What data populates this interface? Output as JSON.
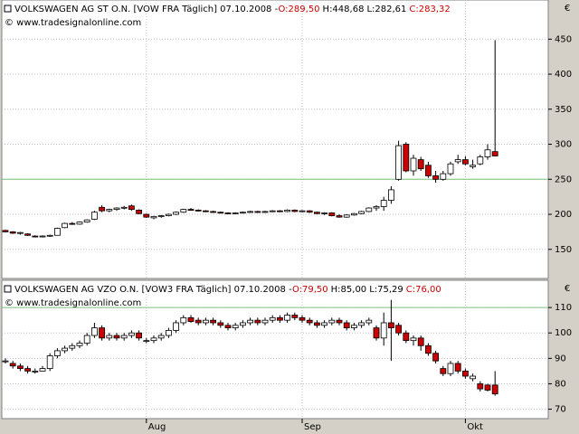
{
  "chart_data": [
    {
      "type": "candlestick",
      "title": "VOLKSWAGEN AG ST O.N. [VOW FRA  Täglich] 07.10.2008 -",
      "ohlc_labels": [
        "O:289,50",
        "H:448,68",
        "L:282,61",
        "C:283,32"
      ],
      "ohlc_label_colors": [
        "#cc0000",
        "#000000",
        "#000000",
        "#cc0000"
      ],
      "source": "© www.tradesignalonline.com",
      "unit": "€",
      "open": [
        177,
        175,
        173,
        172,
        169,
        168,
        169,
        170,
        181,
        187,
        186,
        189,
        193,
        210,
        205,
        207,
        209,
        212,
        206,
        200,
        195,
        197,
        198,
        200,
        203,
        207,
        206,
        205,
        204,
        203,
        202,
        201,
        202,
        203,
        204,
        203,
        204,
        205,
        204,
        206,
        204,
        205,
        203,
        201,
        202,
        198,
        196,
        199,
        201,
        204,
        209,
        211,
        220,
        250,
        300,
        262,
        278,
        270,
        255,
        250,
        258,
        275,
        278,
        268,
        272,
        282,
        289.5
      ],
      "high": [
        178,
        176,
        175,
        173,
        170,
        170,
        171,
        181,
        188,
        189,
        190,
        193,
        205,
        213,
        208,
        210,
        212,
        214,
        207,
        201,
        198,
        199,
        201,
        204,
        208,
        209,
        207,
        206,
        205,
        204,
        203,
        203,
        204,
        205,
        205,
        205,
        206,
        206,
        207,
        207,
        206,
        206,
        204,
        203,
        203,
        200,
        200,
        202,
        205,
        210,
        213,
        225,
        240,
        305,
        303,
        285,
        282,
        275,
        262,
        262,
        275,
        285,
        283,
        278,
        285,
        300,
        448.68
      ],
      "low": [
        174,
        172,
        171,
        169,
        167,
        167,
        168,
        170,
        180,
        185,
        185,
        188,
        192,
        203,
        203,
        205,
        207,
        205,
        200,
        195,
        193,
        195,
        197,
        199,
        202,
        205,
        204,
        203,
        202,
        201,
        200,
        200,
        201,
        202,
        202,
        202,
        203,
        203,
        203,
        203,
        203,
        202,
        200,
        199,
        197,
        195,
        195,
        198,
        200,
        203,
        205,
        205,
        215,
        248,
        260,
        255,
        262,
        252,
        245,
        248,
        255,
        272,
        270,
        265,
        270,
        278,
        282.61
      ],
      "close": [
        175,
        173,
        174,
        170,
        168,
        169,
        170,
        180,
        187,
        186,
        189,
        192,
        203,
        205,
        207,
        209,
        210,
        207,
        201,
        196,
        197,
        198,
        200,
        203,
        207,
        206,
        205,
        204,
        203,
        202,
        201,
        202,
        203,
        204,
        203,
        204,
        205,
        204,
        206,
        204,
        205,
        203,
        201,
        202,
        198,
        196,
        199,
        201,
        204,
        209,
        211,
        220,
        235,
        298,
        262,
        280,
        265,
        255,
        250,
        258,
        272,
        278,
        272,
        270,
        282,
        292,
        283.32
      ],
      "up_color": "#ffffff",
      "down_color": "#cc0000",
      "ylim": [
        111,
        502
      ],
      "yticks": [
        150,
        200,
        250,
        300,
        350,
        400,
        450
      ],
      "grid": true,
      "reference_line": {
        "value": 250,
        "color": "#80c080"
      }
    },
    {
      "type": "candlestick",
      "title": "VOLKSWAGEN AG VZO O.N. [VOW3 FRA  Täglich] 07.10.2008 -",
      "ohlc_labels": [
        "O:79,50",
        "H:85,00",
        "L:75,29",
        "C:76,00"
      ],
      "ohlc_label_colors": [
        "#cc0000",
        "#000000",
        "#000000",
        "#cc0000"
      ],
      "source": "© www.tradesignalonline.com",
      "unit": "€",
      "categories": [
        null,
        null,
        null,
        null,
        null,
        null,
        null,
        null,
        null,
        null,
        null,
        null,
        null,
        null,
        null,
        null,
        null,
        null,
        null,
        "Aug",
        null,
        null,
        null,
        null,
        null,
        null,
        null,
        null,
        null,
        null,
        null,
        null,
        null,
        null,
        null,
        null,
        null,
        null,
        null,
        null,
        "Sep",
        null,
        null,
        null,
        null,
        null,
        null,
        null,
        null,
        null,
        null,
        null,
        null,
        null,
        null,
        null,
        null,
        null,
        null,
        null,
        null,
        null,
        "Okt",
        null,
        null,
        null,
        null
      ],
      "open": [
        89,
        88,
        87,
        86,
        85,
        85,
        86,
        91,
        93,
        94,
        95,
        96,
        99,
        102,
        98,
        99,
        98,
        99,
        100,
        97,
        97,
        98,
        99,
        101,
        104,
        106,
        105,
        104,
        105,
        104,
        103,
        102,
        103,
        104,
        105,
        104,
        105,
        106,
        105,
        107,
        106,
        105,
        104,
        103,
        104,
        105,
        104,
        102,
        103,
        104,
        102,
        98,
        104,
        103,
        100,
        97,
        98,
        95,
        92,
        86,
        84,
        88,
        85,
        82,
        80,
        79.5,
        79.5
      ],
      "high": [
        90,
        89,
        88,
        87,
        86,
        87,
        92,
        94,
        95,
        96,
        97,
        100,
        104,
        103,
        100,
        100,
        100,
        101,
        101,
        98,
        99,
        100,
        102,
        105,
        107,
        107,
        106,
        106,
        106,
        105,
        104,
        104,
        105,
        106,
        106,
        106,
        107,
        107,
        108,
        108,
        107,
        106,
        105,
        105,
        106,
        106,
        105,
        104,
        105,
        106,
        103,
        108,
        113,
        104,
        101,
        99,
        99,
        96,
        93,
        87,
        89,
        89,
        86,
        84,
        81,
        80,
        85
      ],
      "low": [
        88,
        86,
        85,
        84,
        84,
        85,
        85,
        90,
        92,
        93,
        94,
        95,
        98,
        97,
        97,
        97,
        97,
        98,
        97,
        96,
        96,
        97,
        98,
        100,
        103,
        104,
        103,
        103,
        103,
        102,
        101,
        101,
        102,
        103,
        103,
        103,
        104,
        104,
        104,
        105,
        104,
        103,
        102,
        102,
        103,
        103,
        101,
        101,
        102,
        103,
        97,
        95,
        89,
        99,
        96,
        95,
        93,
        91,
        88,
        83,
        83,
        84,
        82,
        81,
        77,
        77,
        75.29
      ],
      "close": [
        89,
        87,
        86,
        85,
        85,
        86,
        91,
        93,
        94,
        95,
        96,
        99,
        102,
        98,
        99,
        98,
        99,
        100,
        98,
        97,
        98,
        99,
        101,
        104,
        106,
        104.5,
        104,
        105,
        104,
        103,
        102,
        103,
        104,
        105,
        104,
        105,
        106,
        105,
        107,
        106,
        105,
        104,
        103,
        104,
        105,
        104,
        102,
        103,
        104,
        105,
        98,
        104,
        102,
        100,
        97,
        98,
        95,
        92,
        89,
        84,
        88,
        85,
        83,
        83,
        78,
        77.5,
        76
      ],
      "up_color": "#ffffff",
      "down_color": "#cc0000",
      "ylim": [
        67,
        120
      ],
      "yticks": [
        70,
        80,
        90,
        100,
        110
      ],
      "grid": true,
      "reference_line": {
        "value": 110,
        "color": "#80c080"
      }
    }
  ]
}
